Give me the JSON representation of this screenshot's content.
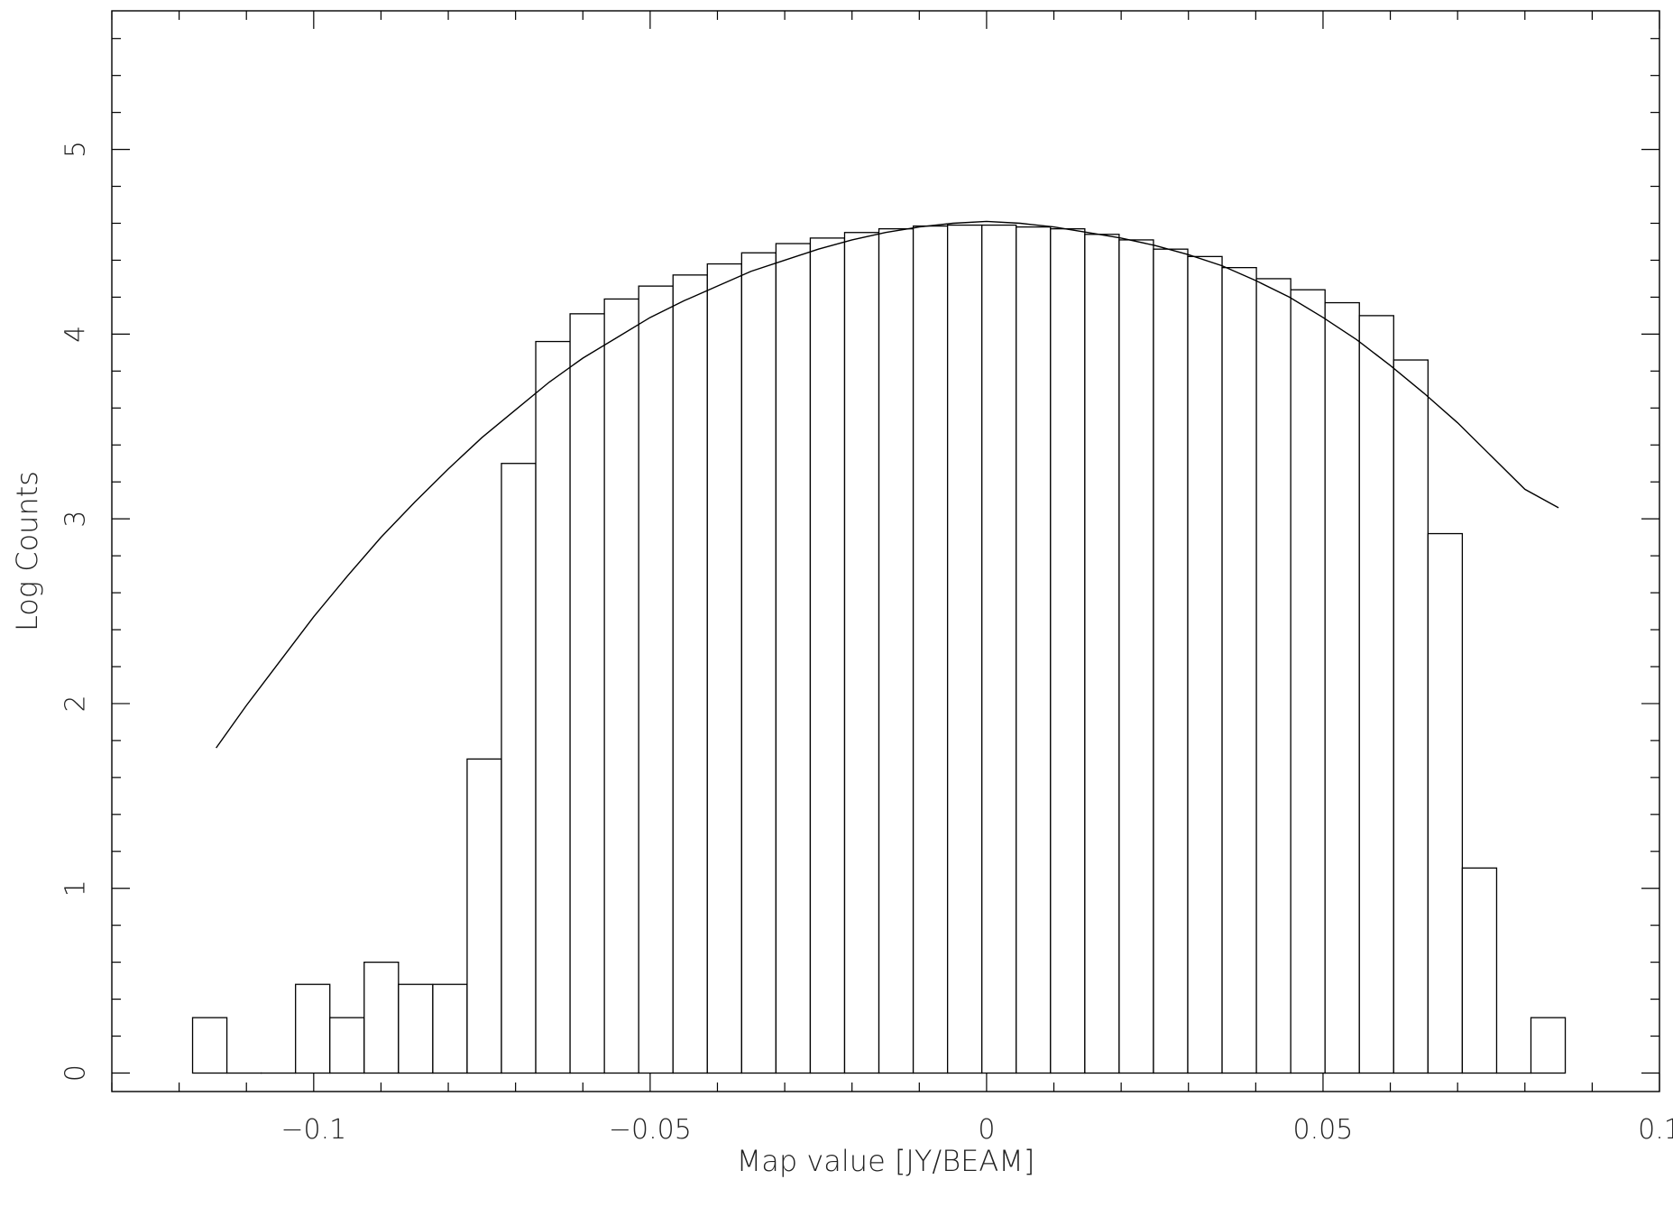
{
  "chart_data": {
    "type": "bar",
    "title": "",
    "xlabel": "Map value [JY/BEAM]",
    "ylabel": "Log Counts",
    "xlim": [
      -0.13,
      0.1
    ],
    "ylim": [
      -0.1,
      5.75
    ],
    "grid": false,
    "x_tick_values": [
      -0.1,
      -0.05,
      0,
      0.05,
      0.1
    ],
    "x_tick_labels": [
      "−0.1",
      "−0.05",
      "0",
      "0.05",
      "0.1"
    ],
    "y_tick_values": [
      0,
      1,
      2,
      3,
      4,
      5
    ],
    "y_tick_labels": [
      "0",
      "1",
      "2",
      "3",
      "4",
      "5"
    ],
    "bin_edges": [
      -0.118,
      -0.1129,
      -0.1078,
      -0.1027,
      -0.0976,
      -0.0925,
      -0.0874,
      -0.0823,
      -0.0772,
      -0.0721,
      -0.067,
      -0.0619,
      -0.0568,
      -0.0517,
      -0.0466,
      -0.0415,
      -0.0364,
      -0.0313,
      -0.0262,
      -0.0211,
      -0.016,
      -0.0109,
      -0.0058,
      -0.0007,
      0.0044,
      0.0095,
      0.0146,
      0.0197,
      0.0248,
      0.0299,
      0.035,
      0.0401,
      0.0452,
      0.0503,
      0.0554,
      0.0605,
      0.0656,
      0.0707,
      0.0758,
      0.0809,
      0.086
    ],
    "values": [
      0.3,
      0,
      0,
      0.48,
      0.3,
      0.6,
      0.48,
      0.48,
      1.7,
      3.3,
      3.96,
      4.11,
      4.19,
      4.26,
      4.32,
      4.38,
      4.44,
      4.49,
      4.52,
      4.55,
      4.57,
      4.585,
      4.59,
      4.59,
      4.58,
      4.57,
      4.54,
      4.51,
      4.46,
      4.42,
      4.36,
      4.3,
      4.24,
      4.17,
      4.1,
      3.86,
      2.92,
      1.11,
      0,
      0.3
    ],
    "series": [
      {
        "type": "line",
        "x": [
          -0.1145,
          -0.11,
          -0.105,
          -0.1,
          -0.095,
          -0.09,
          -0.085,
          -0.08,
          -0.075,
          -0.07,
          -0.065,
          -0.06,
          -0.055,
          -0.05,
          -0.045,
          -0.04,
          -0.035,
          -0.03,
          -0.025,
          -0.02,
          -0.015,
          -0.01,
          -0.005,
          0,
          0.005,
          0.01,
          0.015,
          0.02,
          0.025,
          0.03,
          0.035,
          0.04,
          0.045,
          0.05,
          0.055,
          0.06,
          0.065,
          0.07,
          0.075,
          0.08,
          0.085
        ],
        "y": [
          1.76,
          1.99,
          2.23,
          2.47,
          2.69,
          2.9,
          3.09,
          3.27,
          3.44,
          3.59,
          3.74,
          3.87,
          3.98,
          4.09,
          4.18,
          4.26,
          4.34,
          4.4,
          4.46,
          4.51,
          4.55,
          4.58,
          4.6,
          4.61,
          4.6,
          4.58,
          4.55,
          4.52,
          4.48,
          4.43,
          4.37,
          4.29,
          4.2,
          4.09,
          3.97,
          3.83,
          3.68,
          3.52,
          3.34,
          3.16,
          3.06
        ]
      }
    ]
  }
}
